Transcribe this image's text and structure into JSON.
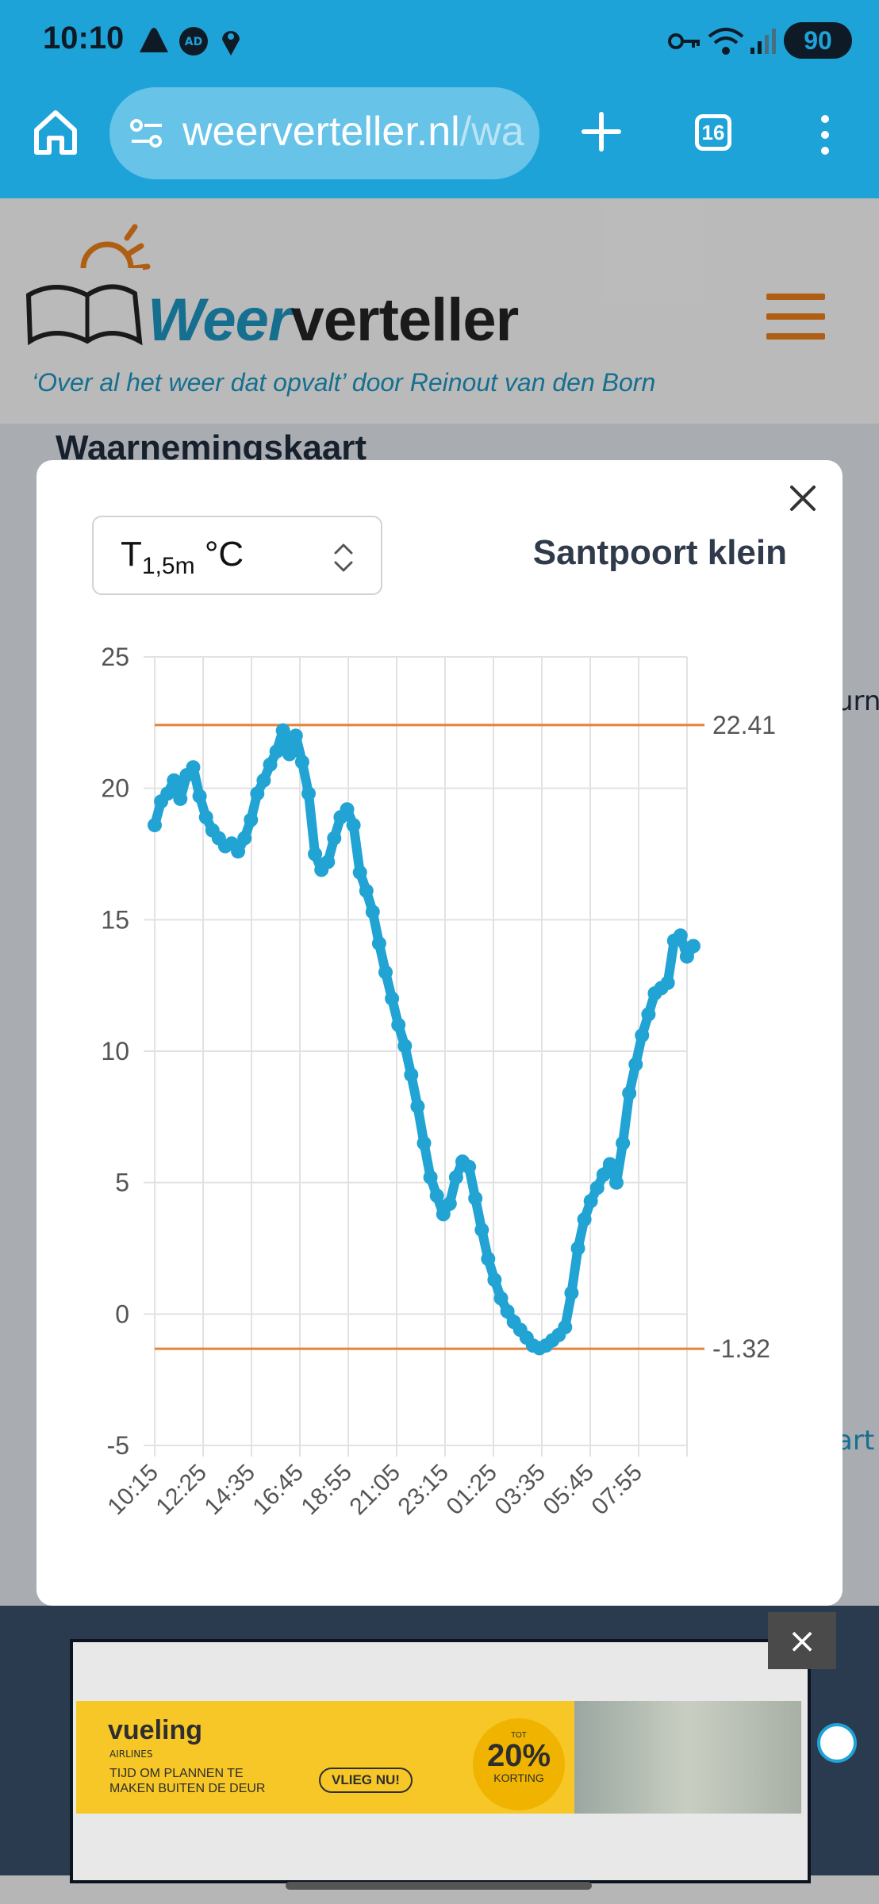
{
  "status_bar": {
    "time": "10:10",
    "battery": "90"
  },
  "browser": {
    "url_main": "weerverteller.nl",
    "url_rest": "/wa",
    "tab_count": "16"
  },
  "site": {
    "brand_part1": "Weer",
    "brand_part2": "verteller",
    "tagline": "‘Over al het weer dat opvalt’ door Reinout van den Born",
    "page_heading": "Waarnemingskaart",
    "map_label_1": "urn",
    "map_label_2": "art"
  },
  "modal": {
    "metric_main": "T",
    "metric_sub": "1,5m",
    "metric_unit": " °C",
    "station": "Santpoort klein"
  },
  "chart_data": {
    "type": "line",
    "x_tick_labels": [
      "10:15",
      "12:25",
      "14:35",
      "16:45",
      "18:55",
      "21:05",
      "23:15",
      "01:25",
      "03:35",
      "05:45",
      "07:55"
    ],
    "y_ticks": [
      25,
      20,
      15,
      10,
      5,
      0,
      -5
    ],
    "ylim": [
      -5,
      25
    ],
    "grid": true,
    "reference_lines": [
      {
        "label": "22.41",
        "value": 22.41
      },
      {
        "label": "-1.32",
        "value": -1.32
      }
    ],
    "colors": {
      "series": "#21a3d4",
      "reference": "#e8813a",
      "grid": "#e2e2e2"
    },
    "series_values": [
      18.6,
      19.5,
      19.8,
      20.3,
      19.6,
      20.5,
      20.8,
      19.7,
      18.9,
      18.4,
      18.1,
      17.8,
      17.9,
      17.6,
      18.1,
      18.8,
      19.8,
      20.3,
      20.9,
      21.4,
      22.2,
      21.3,
      22.0,
      21.0,
      19.8,
      17.5,
      16.9,
      17.2,
      18.1,
      18.9,
      19.2,
      18.6,
      16.8,
      16.1,
      15.3,
      14.1,
      13.0,
      12.0,
      11.0,
      10.2,
      9.1,
      7.9,
      6.5,
      5.2,
      4.5,
      3.8,
      4.2,
      5.2,
      5.8,
      5.6,
      4.4,
      3.2,
      2.1,
      1.3,
      0.6,
      0.1,
      -0.3,
      -0.6,
      -0.9,
      -1.2,
      -1.3,
      -1.2,
      -1.0,
      -0.8,
      -0.5,
      0.8,
      2.5,
      3.6,
      4.3,
      4.8,
      5.3,
      5.7,
      5.0,
      6.5,
      8.4,
      9.5,
      10.6,
      11.4,
      12.2,
      12.4,
      12.6,
      14.2,
      14.4,
      13.6,
      14.0
    ]
  },
  "ad": {
    "brand": "vueling",
    "airlines": "AIRLINES",
    "copy": "TIJD OM PLANNEN TE MAKEN BUITEN DE DEUR",
    "cta": "VLIEG NU!",
    "badge_top": "TOT",
    "badge_pct": "20%",
    "badge_bottom": "KORTING",
    "close": "×"
  }
}
